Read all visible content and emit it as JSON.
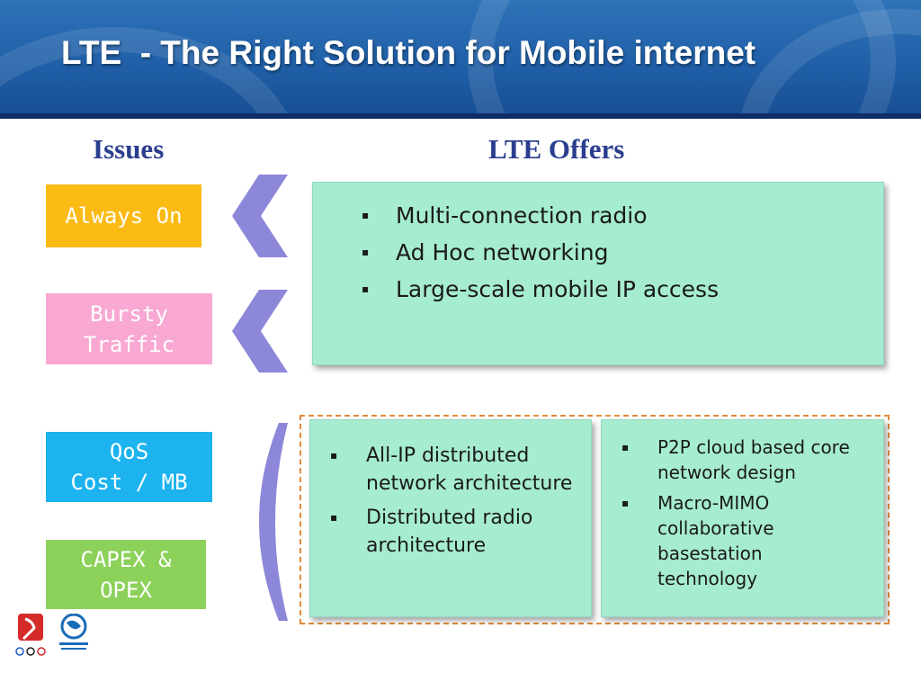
{
  "slide": {
    "title": "LTE  - The Right Solution for Mobile internet",
    "issues_heading": "Issues",
    "offers_heading": "LTE Offers"
  },
  "issues": [
    {
      "label": "Always On",
      "color": "#fbbb14"
    },
    {
      "label": "Bursty\nTraffic",
      "color": "#f8a8d2"
    },
    {
      "label": "QoS\nCost / MB",
      "color": "#1cb3ef"
    },
    {
      "label": "CAPEX &\nOPEX",
      "color": "#8cd15a"
    }
  ],
  "offers_top": {
    "items": [
      "Multi-connection radio",
      "Ad Hoc networking",
      "Large-scale mobile IP access"
    ]
  },
  "offers_bottom_left": {
    "items": [
      "All-IP distributed network architecture",
      "Distributed radio architecture"
    ]
  },
  "offers_bottom_right": {
    "items": [
      "P2P cloud based core network design",
      "Macro-MIMO collaborative basestation technology"
    ]
  },
  "bullet_char": "▪",
  "colors": {
    "panel": "#a6ecd0",
    "chevron": "#8d87d9",
    "heading": "#2a3e8f",
    "dashed_border": "#e08a3c"
  },
  "footer_logos": {
    "left_icon": "beijing-2008-olympic-emblem-icon",
    "right_icon": "china-mobile-logo-icon"
  }
}
